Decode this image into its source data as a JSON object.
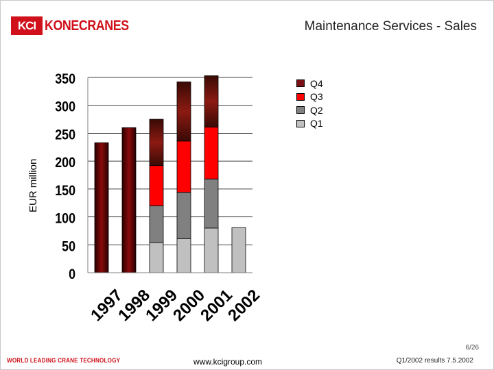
{
  "header": {
    "logo_mark": "KCI",
    "logo_text": "KONECRANES",
    "title": "Maintenance Services - Sales"
  },
  "colors": {
    "brand_red": "#d0101b",
    "q4": "#7a0f14",
    "q3": "#ff0000",
    "q2": "#808080",
    "q1": "#c0c0c0"
  },
  "chart_data": {
    "type": "bar",
    "stacked": true,
    "ylabel": "EUR million",
    "ylim": [
      0,
      350
    ],
    "yticks": [
      0,
      50,
      100,
      150,
      200,
      250,
      300,
      350
    ],
    "categories": [
      "1997",
      "1998",
      "1999",
      "2000",
      "2001",
      "2002"
    ],
    "series": [
      {
        "name": "Q1",
        "values": [
          null,
          null,
          54,
          61,
          80,
          81
        ]
      },
      {
        "name": "Q2",
        "values": [
          null,
          null,
          66,
          83,
          88,
          null
        ]
      },
      {
        "name": "Q3",
        "values": [
          null,
          null,
          72,
          92,
          93,
          null
        ]
      },
      {
        "name": "Q4",
        "values": [
          null,
          null,
          83,
          106,
          92,
          null
        ]
      }
    ],
    "annual_totals": [
      233,
      260,
      null,
      null,
      null,
      null
    ],
    "legend": [
      "Q4",
      "Q3",
      "Q2",
      "Q1"
    ],
    "legend_position": "top-right",
    "grid": true
  },
  "footer": {
    "page": "6/26",
    "tagline": "WORLD LEADING CRANE TECHNOLOGY",
    "url": "www.kcigroup.com",
    "report": "Q1/2002 results 7.5.2002"
  }
}
